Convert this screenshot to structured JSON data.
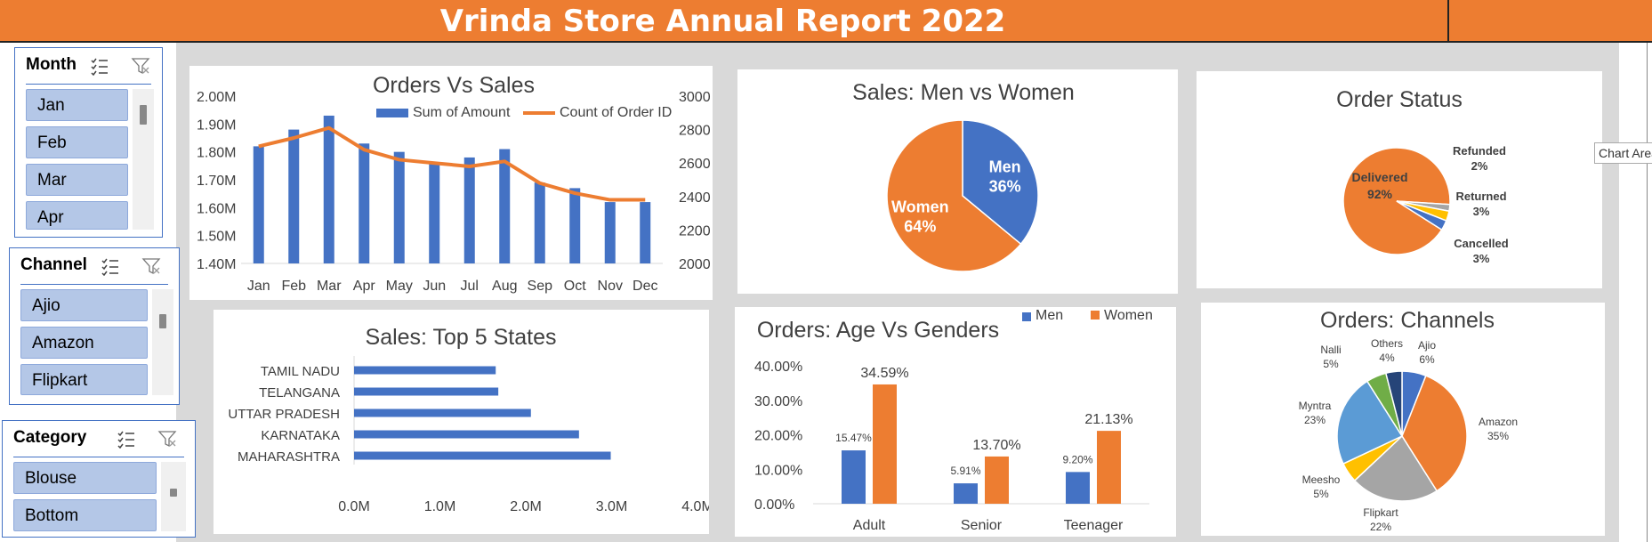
{
  "header": {
    "title": "Vrinda Store Annual Report 2022"
  },
  "tooltip": {
    "text": "Chart Area"
  },
  "slicers": [
    {
      "title": "Month",
      "items": [
        "Jan",
        "Feb",
        "Mar",
        "Apr"
      ]
    },
    {
      "title": "Channel",
      "items": [
        "Ajio",
        "Amazon",
        "Flipkart"
      ]
    },
    {
      "title": "Category",
      "items": [
        "Blouse",
        "Bottom"
      ]
    }
  ],
  "colors": {
    "blue": "#4472c4",
    "orange": "#ed7d31",
    "gray": "#a5a5a5",
    "yellow": "#ffc000",
    "lightblue": "#5b9bd5",
    "green": "#70ad47",
    "navy": "#264478"
  },
  "chart_data": [
    {
      "type": "bar",
      "title": "Orders Vs Sales",
      "categories": [
        "Jan",
        "Feb",
        "Mar",
        "Apr",
        "May",
        "Jun",
        "Jul",
        "Aug",
        "Sep",
        "Oct",
        "Nov",
        "Dec"
      ],
      "series": [
        {
          "name": "Sum of Amount",
          "values": [
            1.82,
            1.88,
            1.93,
            1.83,
            1.8,
            1.76,
            1.78,
            1.81,
            1.69,
            1.67,
            1.62,
            1.62
          ]
        },
        {
          "name": "Count of Order ID",
          "values": [
            2700,
            2750,
            2810,
            2680,
            2620,
            2600,
            2580,
            2610,
            2480,
            2420,
            2380,
            2380
          ]
        }
      ],
      "y_ticks": [
        "2.00M",
        "1.90M",
        "1.80M",
        "1.70M",
        "1.60M",
        "1.50M",
        "1.40M"
      ],
      "y2_ticks": [
        "3000",
        "2800",
        "2600",
        "2400",
        "2200",
        "2000"
      ],
      "ylim": [
        1.4,
        2.0
      ],
      "y2lim": [
        2000,
        3000
      ]
    },
    {
      "type": "pie",
      "title": "Sales: Men vs Women",
      "slices": [
        {
          "name": "Men",
          "value": 36,
          "label": "36%"
        },
        {
          "name": "Women",
          "value": 64,
          "label": "64%"
        }
      ]
    },
    {
      "type": "pie",
      "title": "Order Status",
      "slices": [
        {
          "name": "Delivered",
          "value": 92,
          "label": "92%"
        },
        {
          "name": "Refunded",
          "value": 2,
          "label": "2%"
        },
        {
          "name": "Returned",
          "value": 3,
          "label": "3%"
        },
        {
          "name": "Cancelled",
          "value": 3,
          "label": "3%"
        }
      ]
    },
    {
      "type": "bar",
      "title": "Sales: Top 5 States",
      "categories": [
        "TAMIL NADU",
        "TELANGANA",
        "UTTAR PRADESH",
        "KARNATAKA",
        "MAHARASHTRA"
      ],
      "values": [
        1.65,
        1.68,
        2.06,
        2.62,
        2.99
      ],
      "x_ticks": [
        "0.0M",
        "1.0M",
        "2.0M",
        "3.0M",
        "4.0M"
      ],
      "xlim": [
        0,
        4
      ]
    },
    {
      "type": "bar",
      "title": "Orders: Age Vs Genders",
      "categories": [
        "Adult",
        "Senior",
        "Teenager"
      ],
      "series": [
        {
          "name": "Men",
          "values": [
            15.47,
            5.91,
            9.2
          ],
          "labels": [
            "15.47%",
            "5.91%",
            "9.20%"
          ]
        },
        {
          "name": "Women",
          "values": [
            34.59,
            13.7,
            21.13
          ],
          "labels": [
            "34.59%",
            "13.70%",
            "21.13%"
          ]
        }
      ],
      "y_ticks": [
        "40.00%",
        "30.00%",
        "20.00%",
        "10.00%",
        "0.00%"
      ],
      "ylim": [
        0,
        40
      ]
    },
    {
      "type": "pie",
      "title": "Orders: Channels",
      "slices": [
        {
          "name": "Ajio",
          "value": 6,
          "label": "6%"
        },
        {
          "name": "Amazon",
          "value": 35,
          "label": "35%"
        },
        {
          "name": "Flipkart",
          "value": 22,
          "label": "22%"
        },
        {
          "name": "Meesho",
          "value": 5,
          "label": "5%"
        },
        {
          "name": "Myntra",
          "value": 23,
          "label": "23%"
        },
        {
          "name": "Nalli",
          "value": 5,
          "label": "5%"
        },
        {
          "name": "Others",
          "value": 4,
          "label": "4%"
        }
      ]
    }
  ]
}
